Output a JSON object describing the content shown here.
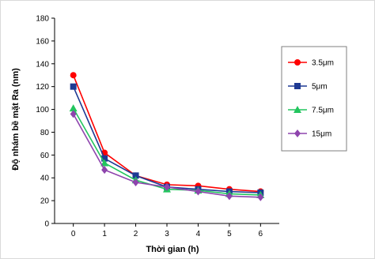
{
  "chart_data": {
    "type": "line",
    "title": "",
    "xlabel": "Thời gian (h)",
    "ylabel": "Độ nhám bề mặt Ra (nm)",
    "x": [
      0,
      1,
      2,
      3,
      4,
      5,
      6
    ],
    "xlim": [
      -0.6,
      6.6
    ],
    "ylim": [
      0,
      180
    ],
    "yticks": [
      0,
      20,
      40,
      60,
      80,
      100,
      120,
      140,
      160,
      180
    ],
    "xticks": [
      0,
      1,
      2,
      3,
      4,
      5,
      6
    ],
    "grid": false,
    "legend_position": "right",
    "series": [
      {
        "name": "3.5μm",
        "color": "#ff0000",
        "marker": "circle",
        "values": [
          130,
          62,
          42,
          34,
          33,
          30,
          28
        ]
      },
      {
        "name": "5μm",
        "color": "#1f3a93",
        "marker": "square",
        "values": [
          120,
          57,
          42,
          32,
          30,
          28,
          27
        ]
      },
      {
        "name": "7.5μm",
        "color": "#22c55e",
        "marker": "triangle",
        "values": [
          101,
          53,
          38,
          30,
          29,
          26,
          25
        ]
      },
      {
        "name": "15μm",
        "color": "#8e44ad",
        "marker": "diamond",
        "values": [
          96,
          47,
          36,
          32,
          28,
          24,
          23
        ]
      }
    ]
  }
}
